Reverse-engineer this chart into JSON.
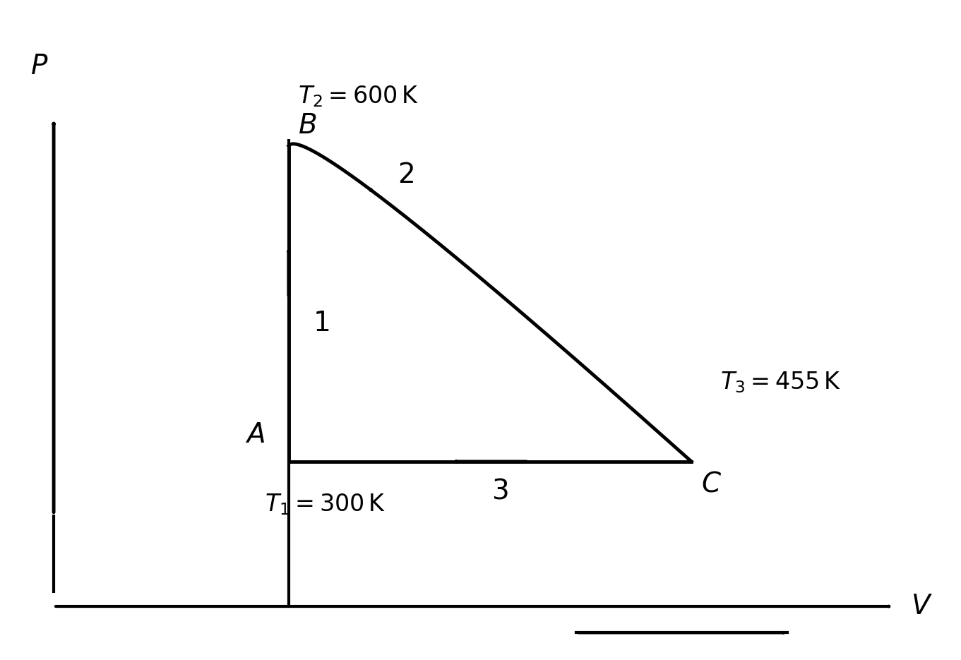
{
  "bg_color": "#ffffff",
  "fig_width": 13.61,
  "fig_height": 9.35,
  "dpi": 100,
  "A": [
    0.3,
    0.3
  ],
  "B": [
    0.3,
    0.78
  ],
  "C": [
    0.72,
    0.3
  ],
  "arrow_color": "#000000",
  "curve_color": "#000000",
  "text_color": "#000000",
  "xlim": [
    0.0,
    1.0
  ],
  "ylim": [
    0.0,
    1.0
  ]
}
